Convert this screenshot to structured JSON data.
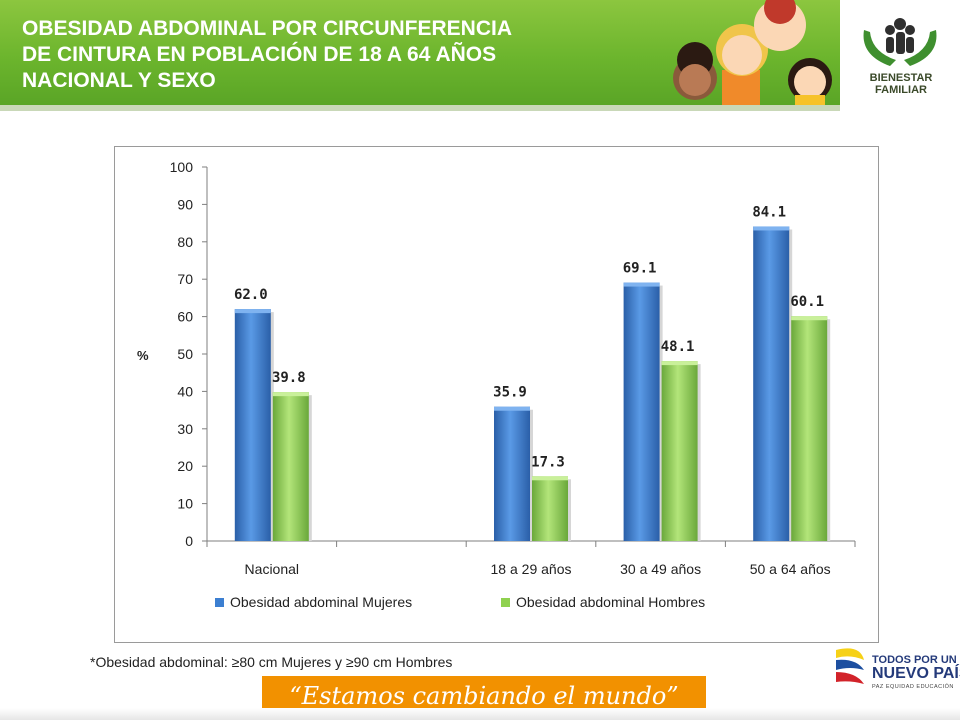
{
  "header": {
    "title_lines": [
      "OBESIDAD ABDOMINAL POR CIRCUNFERENCIA",
      "DE CINTURA EN  POBLACIÓN DE 18 A 64 AÑOS",
      "NACIONAL Y SEXO"
    ],
    "logo_line1": "BIENESTAR",
    "logo_line2": "FAMILIAR"
  },
  "chart_data": {
    "type": "bar",
    "title": "",
    "xlabel": "",
    "ylabel": "%",
    "ylim": [
      0,
      100
    ],
    "yticks": [
      0,
      10,
      20,
      30,
      40,
      50,
      60,
      70,
      80,
      90,
      100
    ],
    "categories": [
      "Nacional",
      "",
      "18 a 29 años",
      "30 a 49 años",
      "50 a 64 años"
    ],
    "series": [
      {
        "name": "Obesidad abdominal  Mujeres",
        "color": "#3c7fd1",
        "values": [
          62.0,
          null,
          35.9,
          69.1,
          84.1
        ],
        "labels": [
          "62.0",
          "",
          "35.9",
          "69.1",
          "84.1"
        ]
      },
      {
        "name": "Obesidad abdominal  Hombres",
        "color": "#8fd14f",
        "values": [
          39.8,
          null,
          17.3,
          48.1,
          60.1
        ],
        "labels": [
          "39.8",
          "",
          "17.3",
          "48.1",
          "60.1"
        ]
      }
    ],
    "legend_position": "bottom",
    "grid": false
  },
  "footnote": "*Obesidad abdominal: ≥80 cm Mujeres y ≥90 cm Hombres",
  "slogan": "“Estamos cambiando el mundo”",
  "branding": {
    "line1": "TODOS POR UN",
    "line2": "NUEVO PAÍS",
    "line3": "PAZ  EQUIDAD  EDUCACIÓN"
  },
  "colors": {
    "header_green": "#6cb52d",
    "slogan_orange": "#f29100",
    "bar_blue": "#3c7fd1",
    "bar_green": "#8fd14f"
  }
}
